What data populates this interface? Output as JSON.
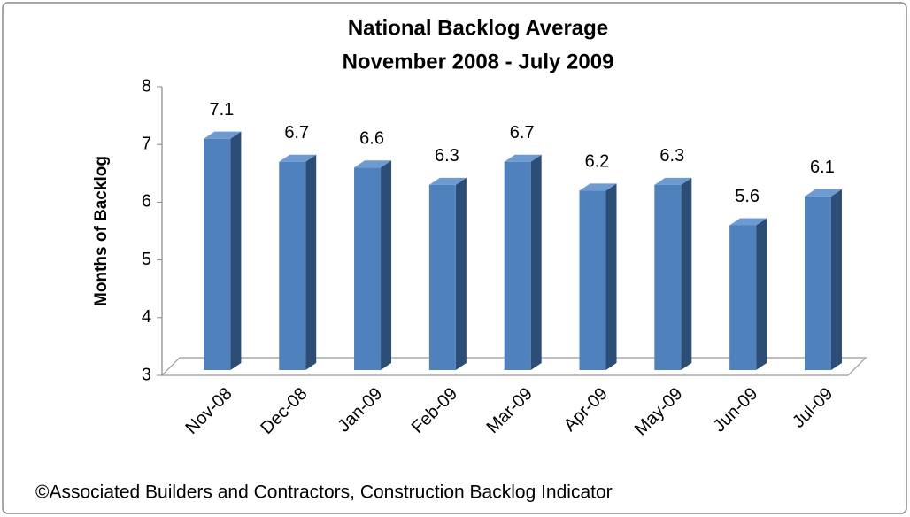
{
  "chart_data": {
    "type": "bar",
    "title": "National Backlog Average",
    "subtitle": "November 2008 - July 2009",
    "y_label": "Months of Backlog",
    "source": "©Associated Builders and Contractors, Construction Backlog Indicator",
    "categories": [
      "Nov-08",
      "Dec-08",
      "Jan-09",
      "Feb-09",
      "Mar-09",
      "Apr-09",
      "May-09",
      "Jun-09",
      "Jul-09"
    ],
    "values": [
      7.1,
      6.7,
      6.6,
      6.3,
      6.7,
      6.2,
      6.3,
      5.6,
      6.1
    ],
    "color": "#4f81bd",
    "ylim": [
      3,
      8
    ],
    "yticks": [
      3,
      4,
      5,
      6,
      7,
      8
    ],
    "grid": false
  }
}
